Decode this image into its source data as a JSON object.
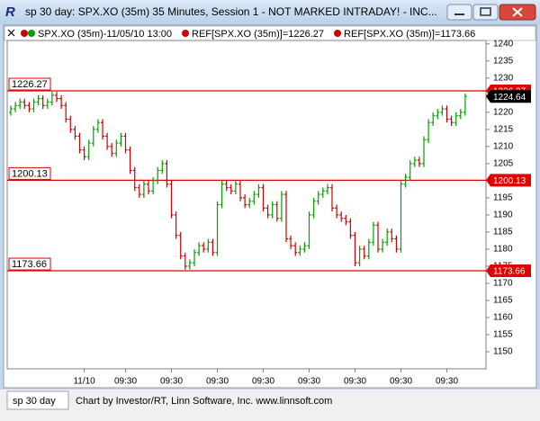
{
  "window": {
    "title": "sp 30 day: SPX.XO (35m) 35 Minutes, Session 1 - NOT MARKED INTRADAY! - INC..."
  },
  "legend": [
    {
      "text": "SPX.XO (35m)-11/05/10 13:00",
      "color": "#00a000"
    },
    {
      "text": "REF[SPX.XO (35m)]=1226.27",
      "color": "#cc0000"
    },
    {
      "text": "REF[SPX.XO (35m)]=1173.66",
      "color": "#cc0000"
    }
  ],
  "status_bar": {
    "tab": "sp 30 day",
    "credit": "Chart by Investor/RT, Linn Software, Inc. www.linnsoft.com"
  },
  "chart_data": {
    "type": "ohlc",
    "categories": [
      null,
      null,
      null,
      null,
      null,
      null,
      null,
      null,
      null,
      null,
      null,
      null,
      null,
      null,
      null,
      null,
      "11/10",
      null,
      null,
      null,
      null,
      null,
      null,
      null,
      null,
      "09:30",
      null,
      null,
      null,
      null,
      null,
      null,
      null,
      null,
      null,
      "09:30",
      null,
      null,
      null,
      null,
      null,
      null,
      null,
      null,
      null,
      "09:30",
      null,
      null,
      null,
      null,
      null,
      null,
      null,
      null,
      null,
      "09:30",
      null,
      null,
      null,
      null,
      null,
      null,
      null,
      null,
      null,
      "09:30",
      null,
      null,
      null,
      null,
      null,
      null,
      null,
      null,
      null,
      "09:30",
      null,
      null,
      null,
      null,
      null,
      null,
      null,
      null,
      null,
      "09:30",
      null,
      null,
      null,
      null,
      null,
      null,
      null,
      null,
      null,
      "09:30",
      null,
      null,
      null,
      null
    ],
    "open": [
      1220,
      1221,
      1222,
      1223,
      1222,
      1221,
      1223,
      1224,
      1222,
      1223,
      1225,
      1224,
      1222,
      1218,
      1215,
      1213,
      1209,
      1207,
      1211,
      1215,
      1217,
      1213,
      1210,
      1208,
      1211,
      1213,
      1209,
      1203,
      1198,
      1196,
      1199,
      1197,
      1200,
      1203,
      1205,
      1199,
      1190,
      1184,
      1178,
      1175,
      1176,
      1179,
      1181,
      1180,
      1182,
      1179,
      1193,
      1199,
      1198,
      1197,
      1199,
      1195,
      1193,
      1194,
      1196,
      1198,
      1192,
      1190,
      1193,
      1189,
      1196,
      1183,
      1181,
      1179,
      1180,
      1181,
      1190,
      1194,
      1196,
      1197,
      1198,
      1192,
      1190,
      1189,
      1188,
      1184,
      1176,
      1180,
      1178,
      1182,
      1187,
      1180,
      1182,
      1185,
      1183,
      1180,
      1199,
      1201,
      1205,
      1206,
      1205,
      1212,
      1217,
      1219,
      1220,
      1221,
      1218,
      1217,
      1219,
      1220
    ],
    "high": [
      1222,
      1223,
      1224,
      1224,
      1223,
      1224,
      1225,
      1225,
      1224,
      1226,
      1226,
      1225,
      1223,
      1219,
      1216,
      1214,
      1210,
      1212,
      1216,
      1218,
      1218,
      1214,
      1211,
      1212,
      1214,
      1214,
      1210,
      1204,
      1199,
      1200,
      1200,
      1201,
      1204,
      1206,
      1206,
      1200,
      1191,
      1185,
      1179,
      1177,
      1180,
      1182,
      1182,
      1183,
      1183,
      1194,
      1200,
      1200,
      1199,
      1200,
      1200,
      1196,
      1195,
      1197,
      1199,
      1199,
      1193,
      1194,
      1194,
      1197,
      1197,
      1184,
      1182,
      1181,
      1182,
      1191,
      1195,
      1197,
      1198,
      1199,
      1199,
      1193,
      1191,
      1190,
      1189,
      1185,
      1181,
      1181,
      1183,
      1188,
      1188,
      1183,
      1186,
      1186,
      1184,
      1200,
      1202,
      1206,
      1207,
      1207,
      1213,
      1218,
      1220,
      1221,
      1222,
      1222,
      1219,
      1220,
      1221,
      1225.5
    ],
    "low": [
      1219,
      1220,
      1221,
      1221,
      1220,
      1220,
      1222,
      1221,
      1221,
      1222,
      1223,
      1221,
      1217,
      1214,
      1212,
      1208,
      1206,
      1206,
      1210,
      1214,
      1212,
      1209,
      1207,
      1207,
      1210,
      1208,
      1202,
      1197,
      1195,
      1195,
      1196,
      1196,
      1199,
      1202,
      1198,
      1189,
      1183,
      1177,
      1174,
      1174,
      1175,
      1178,
      1179,
      1179,
      1178,
      1178,
      1192,
      1197,
      1196,
      1196,
      1194,
      1192,
      1192,
      1193,
      1195,
      1191,
      1189,
      1189,
      1188,
      1188,
      1182,
      1180,
      1178,
      1178,
      1179,
      1180,
      1189,
      1193,
      1195,
      1196,
      1191,
      1189,
      1188,
      1187,
      1183,
      1175,
      1175,
      1177,
      1177,
      1181,
      1179,
      1179,
      1181,
      1182,
      1179,
      1179,
      1198,
      1200,
      1204,
      1204,
      1204,
      1211,
      1216,
      1218,
      1219,
      1217,
      1216,
      1216,
      1218,
      1219
    ],
    "close": [
      1221,
      1222,
      1223,
      1222,
      1221,
      1223,
      1224,
      1222,
      1223,
      1225,
      1224,
      1222,
      1218,
      1215,
      1213,
      1209,
      1207,
      1211,
      1215,
      1217,
      1213,
      1210,
      1208,
      1211,
      1213,
      1209,
      1203,
      1198,
      1196,
      1199,
      1197,
      1200,
      1203,
      1205,
      1199,
      1190,
      1184,
      1178,
      1175,
      1176,
      1179,
      1181,
      1180,
      1182,
      1179,
      1193,
      1199,
      1198,
      1197,
      1199,
      1195,
      1193,
      1194,
      1196,
      1198,
      1192,
      1190,
      1193,
      1189,
      1196,
      1183,
      1181,
      1179,
      1180,
      1181,
      1190,
      1194,
      1196,
      1197,
      1198,
      1192,
      1190,
      1189,
      1188,
      1184,
      1176,
      1180,
      1178,
      1182,
      1187,
      1180,
      1182,
      1185,
      1183,
      1180,
      1199,
      1201,
      1205,
      1206,
      1205,
      1212,
      1217,
      1219,
      1220,
      1221,
      1218,
      1217,
      1219,
      1220,
      1224.64
    ],
    "up_color": "#00a000",
    "down_color": "#d00000",
    "reference_lines": [
      1226.27,
      1200.13,
      1173.66
    ],
    "reference_color": "#e00000",
    "ylim": [
      1145,
      1241
    ],
    "yticks": [
      1150,
      1155,
      1160,
      1165,
      1170,
      1175,
      1180,
      1185,
      1190,
      1195,
      1200,
      1205,
      1210,
      1215,
      1220,
      1225,
      1230,
      1235,
      1240
    ],
    "grid": false
  }
}
